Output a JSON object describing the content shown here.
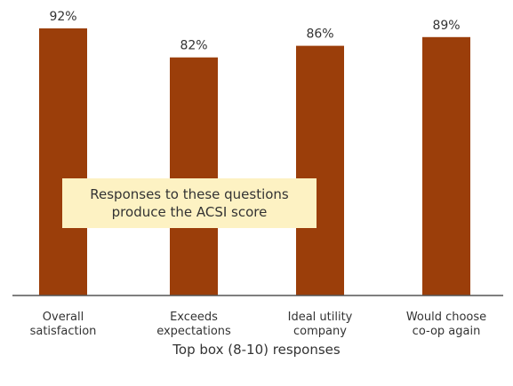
{
  "chart_data": {
    "type": "bar",
    "categories": [
      [
        "Overall",
        "satisfaction"
      ],
      [
        "Exceeds",
        "expectations"
      ],
      [
        "Ideal utility",
        "company"
      ],
      [
        "Would choose",
        "co-op again"
      ]
    ],
    "values": [
      92,
      82,
      86,
      89
    ],
    "value_labels": [
      "92%",
      "82%",
      "86%",
      "89%"
    ],
    "xlabel": "Top box (8-10) responses",
    "ylim": [
      0,
      100
    ],
    "grid": false,
    "bar_color": "#9b3e0a",
    "annotation": [
      "Responses to these questions",
      "produce the ACSI score"
    ],
    "annotation_color": "#fdf2c3"
  }
}
